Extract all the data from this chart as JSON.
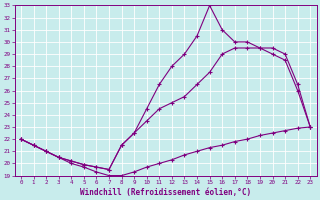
{
  "xlabel": "Windchill (Refroidissement éolien,°C)",
  "bg_color": "#c8ecec",
  "line_color": "#800080",
  "grid_color": "#ffffff",
  "xlim": [
    -0.5,
    23.5
  ],
  "ylim": [
    19,
    33
  ],
  "yticks": [
    19,
    20,
    21,
    22,
    23,
    24,
    25,
    26,
    27,
    28,
    29,
    30,
    31,
    32,
    33
  ],
  "xticks": [
    0,
    1,
    2,
    3,
    4,
    5,
    6,
    7,
    8,
    9,
    10,
    11,
    12,
    13,
    14,
    15,
    16,
    17,
    18,
    19,
    20,
    21,
    22,
    23
  ],
  "series1_x": [
    0,
    1,
    2,
    3,
    4,
    5,
    6,
    7,
    8,
    9,
    10,
    11,
    12,
    13,
    14,
    15,
    16,
    17,
    18,
    19,
    20,
    21,
    22,
    23
  ],
  "series1_y": [
    22.0,
    21.5,
    21.0,
    20.5,
    20.0,
    19.7,
    19.3,
    19.0,
    19.0,
    19.3,
    19.7,
    20.0,
    20.3,
    20.7,
    21.0,
    21.3,
    21.5,
    21.8,
    22.0,
    22.3,
    22.5,
    22.7,
    22.9,
    23.0
  ],
  "series2_x": [
    0,
    1,
    2,
    3,
    4,
    5,
    6,
    7,
    8,
    9,
    10,
    11,
    12,
    13,
    14,
    15,
    16,
    17,
    18,
    19,
    20,
    21,
    22,
    23
  ],
  "series2_y": [
    22.0,
    21.5,
    21.0,
    20.5,
    20.2,
    19.9,
    19.7,
    19.5,
    21.5,
    22.5,
    23.5,
    24.5,
    25.0,
    25.5,
    26.5,
    27.5,
    29.0,
    29.5,
    29.5,
    29.5,
    29.0,
    28.5,
    26.0,
    23.0
  ],
  "series3_x": [
    0,
    1,
    2,
    3,
    4,
    5,
    6,
    7,
    8,
    9,
    10,
    11,
    12,
    13,
    14,
    15,
    16,
    17,
    18,
    19,
    20,
    21,
    22,
    23
  ],
  "series3_y": [
    22.0,
    21.5,
    21.0,
    20.5,
    20.2,
    19.9,
    19.7,
    19.5,
    21.5,
    22.5,
    24.5,
    26.5,
    28.0,
    29.0,
    30.5,
    33.0,
    31.0,
    30.0,
    30.0,
    29.5,
    29.5,
    29.0,
    26.5,
    23.0
  ]
}
